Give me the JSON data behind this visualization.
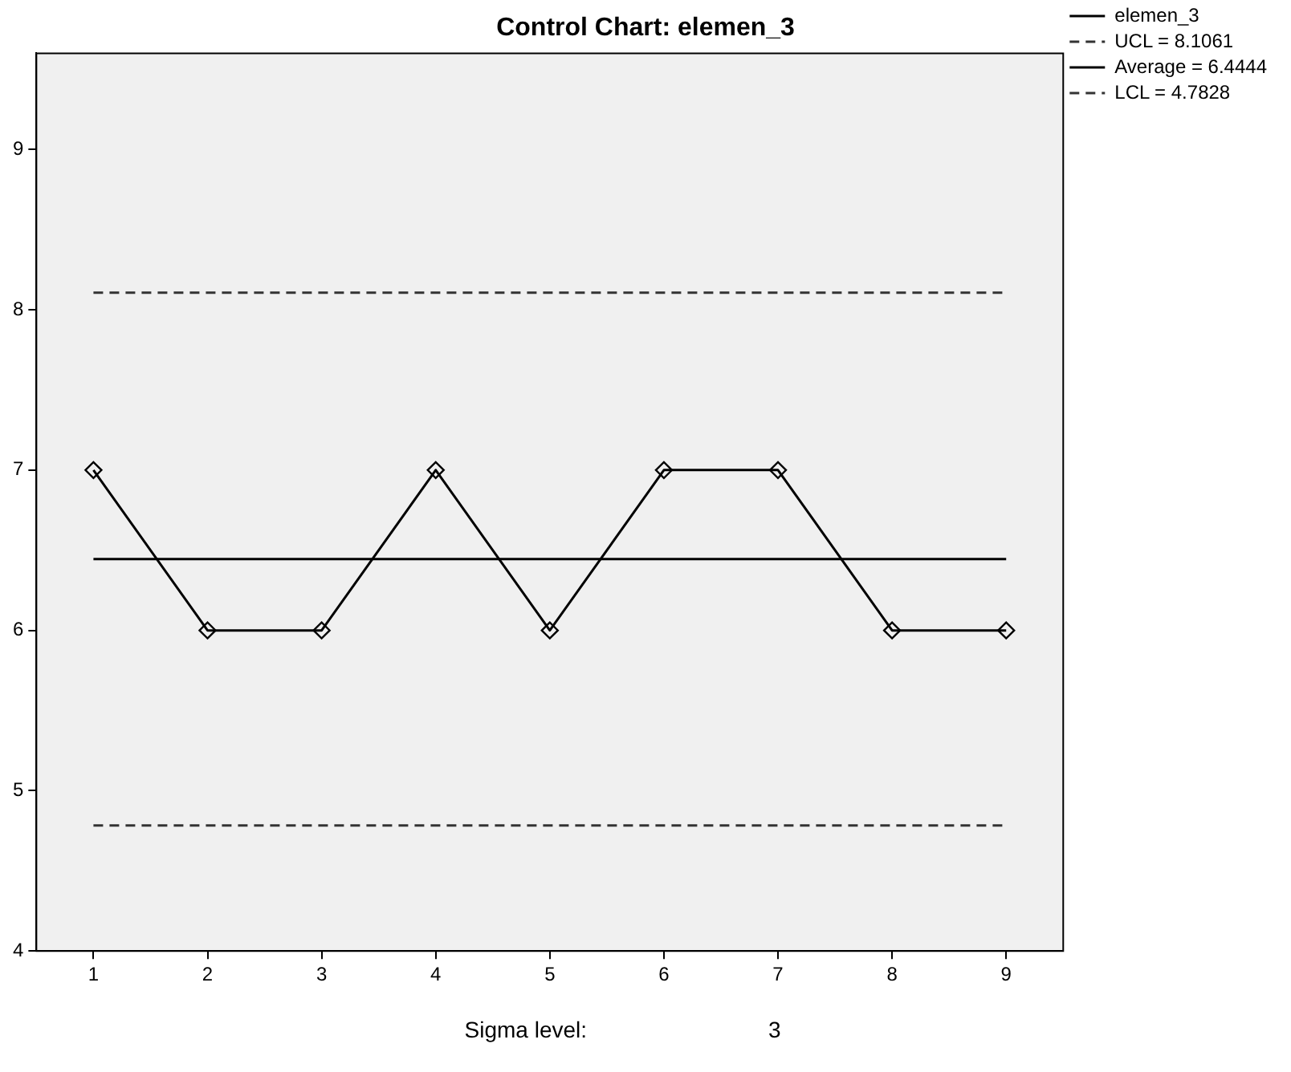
{
  "chart_data": {
    "type": "line",
    "title": "Control Chart: elemen_3",
    "categories": [
      "1",
      "2",
      "3",
      "4",
      "5",
      "6",
      "7",
      "8",
      "9"
    ],
    "series": [
      {
        "name": "elemen_3",
        "color": "#000000",
        "values": [
          7,
          6,
          6,
          7,
          6,
          7,
          7,
          6,
          6
        ]
      }
    ],
    "ylim": [
      4,
      9.6
    ],
    "yticks": [
      4,
      5,
      6,
      7,
      8,
      9
    ],
    "marker": "diamond",
    "line_style": "solid",
    "grid": false,
    "legend": "top right",
    "ref_lines": [
      {
        "axis": "y",
        "value": 8.1061,
        "label": "UCL = 8.1061",
        "line_style": "dashed",
        "color": "#333333"
      },
      {
        "axis": "y",
        "value": 6.4444,
        "label": "Average = 6.4444",
        "line_style": "solid",
        "color": "#000000"
      },
      {
        "axis": "y",
        "value": 4.7828,
        "label": "LCL = 4.7828",
        "line_style": "dashed",
        "color": "#333333"
      }
    ],
    "annotations": [
      "Sigma level:",
      "3"
    ]
  }
}
